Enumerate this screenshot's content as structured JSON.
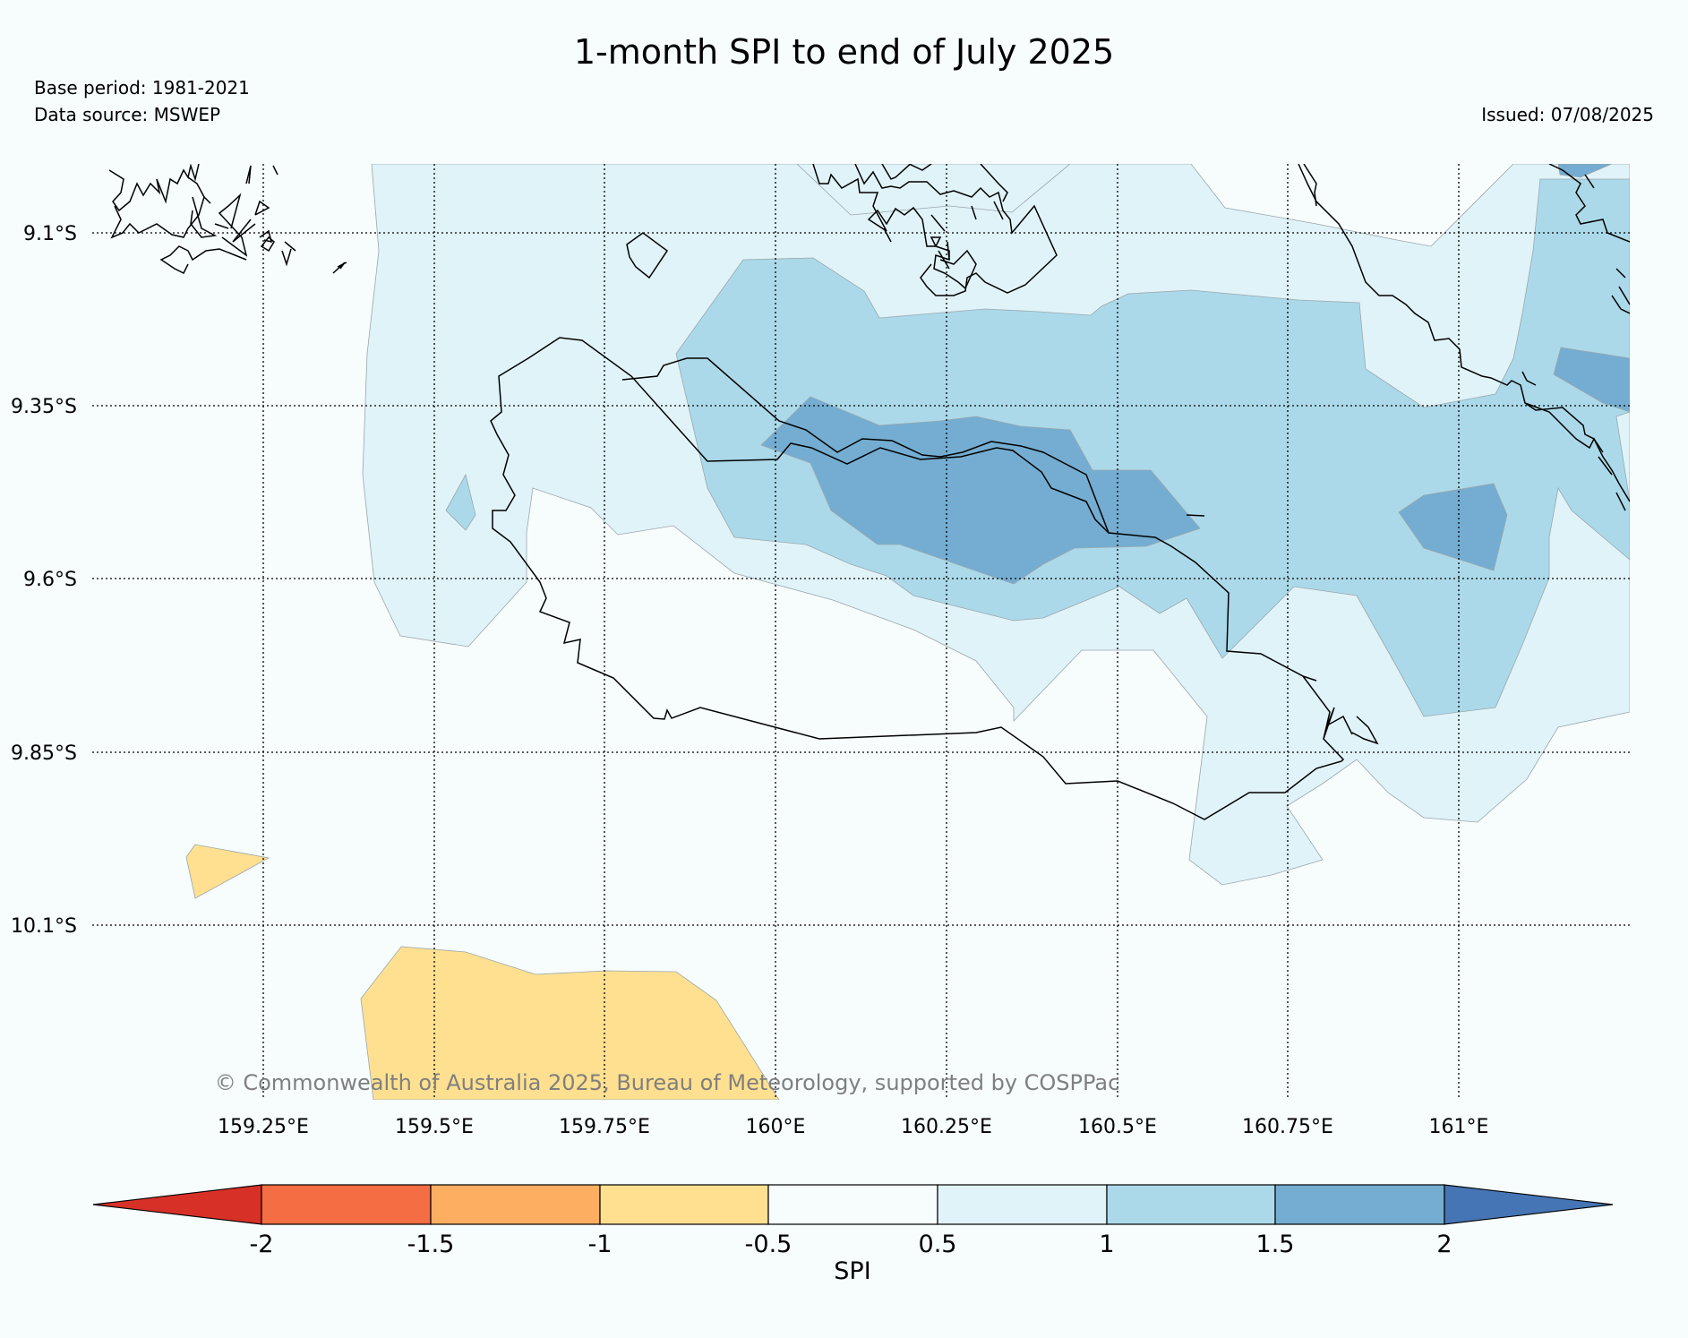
{
  "title": "1-month SPI to end of July 2025",
  "base_period": "Base period: 1981-2021",
  "data_source": "Data source: MSWEP",
  "issued": "Issued: 07/08/2025",
  "copyright": "© Commonwealth of Australia 2025, Bureau of Meteorology, supported by COSPPac",
  "lat_labels": [
    "9.1°S",
    "9.35°S",
    "9.6°S",
    "9.85°S",
    "10.1°S"
  ],
  "lon_labels": [
    "159.25°E",
    "159.5°E",
    "159.75°E",
    "160°E",
    "160.25°E",
    "160.5°E",
    "160.75°E",
    "161°E"
  ],
  "colorbar": {
    "label": "SPI",
    "ticks": [
      "-2",
      "-1.5",
      "-1",
      "-0.5",
      "0.5",
      "1",
      "1.5",
      "2"
    ],
    "colors": {
      "below_-2": "#d73027",
      "-2_to_-1.5": "#f46d43",
      "-1.5_to_-1": "#fdae61",
      "-1_to_-0.5": "#fee090",
      "-0.5_to_0.5": "#f7fcfd",
      "0.5_to_1": "#e0f3f8",
      "1_to_1.5": "#abd9e9",
      "1.5_to_2": "#74add1",
      "above_2": "#4575b4"
    }
  }
}
